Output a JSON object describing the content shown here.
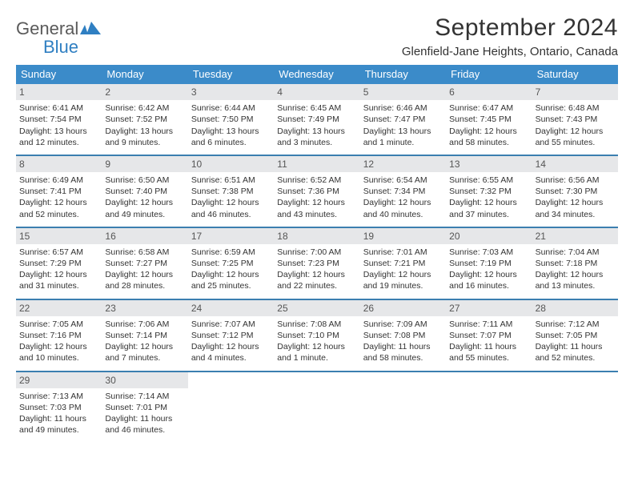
{
  "logo": {
    "word1": "General",
    "word2": "Blue"
  },
  "title": "September 2024",
  "location": "Glenfield-Jane Heights, Ontario, Canada",
  "colors": {
    "header_bg": "#3b8bc9",
    "week_border": "#3b7fb0",
    "daynum_bg": "#e6e7e9",
    "logo_blue": "#2f7fc2"
  },
  "dayHeaders": [
    "Sunday",
    "Monday",
    "Tuesday",
    "Wednesday",
    "Thursday",
    "Friday",
    "Saturday"
  ],
  "weeks": [
    [
      {
        "n": "1",
        "sunrise": "6:41 AM",
        "sunset": "7:54 PM",
        "daylight": "13 hours and 12 minutes."
      },
      {
        "n": "2",
        "sunrise": "6:42 AM",
        "sunset": "7:52 PM",
        "daylight": "13 hours and 9 minutes."
      },
      {
        "n": "3",
        "sunrise": "6:44 AM",
        "sunset": "7:50 PM",
        "daylight": "13 hours and 6 minutes."
      },
      {
        "n": "4",
        "sunrise": "6:45 AM",
        "sunset": "7:49 PM",
        "daylight": "13 hours and 3 minutes."
      },
      {
        "n": "5",
        "sunrise": "6:46 AM",
        "sunset": "7:47 PM",
        "daylight": "13 hours and 1 minute."
      },
      {
        "n": "6",
        "sunrise": "6:47 AM",
        "sunset": "7:45 PM",
        "daylight": "12 hours and 58 minutes."
      },
      {
        "n": "7",
        "sunrise": "6:48 AM",
        "sunset": "7:43 PM",
        "daylight": "12 hours and 55 minutes."
      }
    ],
    [
      {
        "n": "8",
        "sunrise": "6:49 AM",
        "sunset": "7:41 PM",
        "daylight": "12 hours and 52 minutes."
      },
      {
        "n": "9",
        "sunrise": "6:50 AM",
        "sunset": "7:40 PM",
        "daylight": "12 hours and 49 minutes."
      },
      {
        "n": "10",
        "sunrise": "6:51 AM",
        "sunset": "7:38 PM",
        "daylight": "12 hours and 46 minutes."
      },
      {
        "n": "11",
        "sunrise": "6:52 AM",
        "sunset": "7:36 PM",
        "daylight": "12 hours and 43 minutes."
      },
      {
        "n": "12",
        "sunrise": "6:54 AM",
        "sunset": "7:34 PM",
        "daylight": "12 hours and 40 minutes."
      },
      {
        "n": "13",
        "sunrise": "6:55 AM",
        "sunset": "7:32 PM",
        "daylight": "12 hours and 37 minutes."
      },
      {
        "n": "14",
        "sunrise": "6:56 AM",
        "sunset": "7:30 PM",
        "daylight": "12 hours and 34 minutes."
      }
    ],
    [
      {
        "n": "15",
        "sunrise": "6:57 AM",
        "sunset": "7:29 PM",
        "daylight": "12 hours and 31 minutes."
      },
      {
        "n": "16",
        "sunrise": "6:58 AM",
        "sunset": "7:27 PM",
        "daylight": "12 hours and 28 minutes."
      },
      {
        "n": "17",
        "sunrise": "6:59 AM",
        "sunset": "7:25 PM",
        "daylight": "12 hours and 25 minutes."
      },
      {
        "n": "18",
        "sunrise": "7:00 AM",
        "sunset": "7:23 PM",
        "daylight": "12 hours and 22 minutes."
      },
      {
        "n": "19",
        "sunrise": "7:01 AM",
        "sunset": "7:21 PM",
        "daylight": "12 hours and 19 minutes."
      },
      {
        "n": "20",
        "sunrise": "7:03 AM",
        "sunset": "7:19 PM",
        "daylight": "12 hours and 16 minutes."
      },
      {
        "n": "21",
        "sunrise": "7:04 AM",
        "sunset": "7:18 PM",
        "daylight": "12 hours and 13 minutes."
      }
    ],
    [
      {
        "n": "22",
        "sunrise": "7:05 AM",
        "sunset": "7:16 PM",
        "daylight": "12 hours and 10 minutes."
      },
      {
        "n": "23",
        "sunrise": "7:06 AM",
        "sunset": "7:14 PM",
        "daylight": "12 hours and 7 minutes."
      },
      {
        "n": "24",
        "sunrise": "7:07 AM",
        "sunset": "7:12 PM",
        "daylight": "12 hours and 4 minutes."
      },
      {
        "n": "25",
        "sunrise": "7:08 AM",
        "sunset": "7:10 PM",
        "daylight": "12 hours and 1 minute."
      },
      {
        "n": "26",
        "sunrise": "7:09 AM",
        "sunset": "7:08 PM",
        "daylight": "11 hours and 58 minutes."
      },
      {
        "n": "27",
        "sunrise": "7:11 AM",
        "sunset": "7:07 PM",
        "daylight": "11 hours and 55 minutes."
      },
      {
        "n": "28",
        "sunrise": "7:12 AM",
        "sunset": "7:05 PM",
        "daylight": "11 hours and 52 minutes."
      }
    ],
    [
      {
        "n": "29",
        "sunrise": "7:13 AM",
        "sunset": "7:03 PM",
        "daylight": "11 hours and 49 minutes."
      },
      {
        "n": "30",
        "sunrise": "7:14 AM",
        "sunset": "7:01 PM",
        "daylight": "11 hours and 46 minutes."
      },
      null,
      null,
      null,
      null,
      null
    ]
  ],
  "labels": {
    "sunrise": "Sunrise: ",
    "sunset": "Sunset: ",
    "daylight": "Daylight: "
  }
}
